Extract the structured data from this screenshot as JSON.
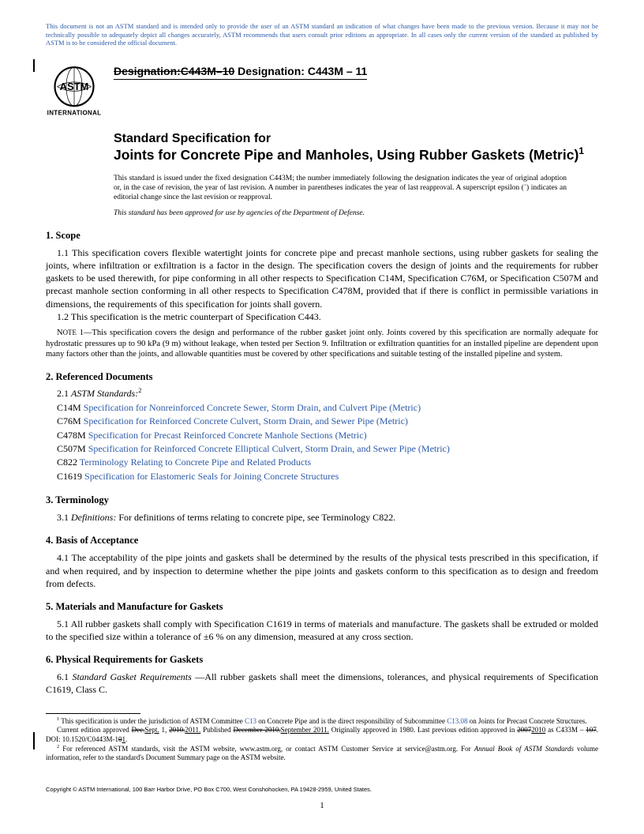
{
  "disclaimer": "This document is not an ASTM standard and is intended only to provide the user of an ASTM standard an indication of what changes have been made to the previous version. Because it may not be technically possible to adequately depict all changes accurately, ASTM recommends that users consult prior editions as appropriate. In all cases only the current version of the standard as published by ASTM is to be considered the official document.",
  "logo_text_top": "ASTM",
  "logo_text_bottom": "INTERNATIONAL",
  "designation_old_label": "Designation:",
  "designation_old_code": "C443M–10",
  "designation_new_label": " Designation: ",
  "designation_new_code": "C443M – 11",
  "title_lead": "Standard Specification for",
  "title_main": "Joints for Concrete Pipe and Manholes, Using Rubber Gaskets (Metric)",
  "title_sup": "1",
  "issuance": "This standard is issued under the fixed designation C443M; the number immediately following the designation indicates the year of original adoption or, in the case of revision, the year of last revision. A number in parentheses indicates the year of last reapproval. A superscript epsilon (´) indicates an editorial change since the last revision or reapproval.",
  "dod_note": "This standard has been approved for use by agencies of the Department of Defense.",
  "s1_head": "1.  Scope",
  "s1_1": "1.1  This specification covers flexible watertight joints for concrete pipe and precast manhole sections, using rubber gaskets for sealing the joints, where infiltration or exfiltration is a factor in the design. The specification covers the design of joints and the requirements for rubber gaskets to be used therewith, for pipe conforming in all other respects to Specification C14M, Specification C76M, or Specification C507M and precast manhole section conforming in all other respects to Specification C478M, provided that if there is conflict in permissible variations in dimensions, the requirements of this specification for joints shall govern.",
  "s1_2": "1.2  This specification is the metric counterpart of Specification C443.",
  "note1_label": "Note 1—",
  "note1": "This specification covers the design and performance of the rubber gasket joint only. Joints covered by this specification are normally adequate for hydrostatic pressures up to 90 kPa (9 m) without leakage, when tested per Section 9. Infiltration or exfiltration quantities for an installed pipeline are dependent upon many factors other than the joints, and allowable quantities must be covered by other specifications and suitable testing of the installed pipeline and system.",
  "s2_head": "2.  Referenced Documents",
  "s2_1_label": "2.1 ",
  "s2_1_italic": "ASTM Standards:",
  "s2_1_sup": "2",
  "refs": [
    {
      "code": "C14M",
      "title": "Specification for Nonreinforced Concrete Sewer, Storm Drain, and Culvert Pipe (Metric)"
    },
    {
      "code": "C76M",
      "title": "Specification for Reinforced Concrete Culvert, Storm Drain, and Sewer Pipe (Metric)"
    },
    {
      "code": "C478M",
      "title": "Specification for Precast Reinforced Concrete Manhole Sections (Metric)"
    },
    {
      "code": "C507M",
      "title": "Specification for Reinforced Concrete Elliptical Culvert, Storm Drain, and Sewer Pipe (Metric)"
    },
    {
      "code": "C822",
      "title": "Terminology Relating to Concrete Pipe and Related Products"
    },
    {
      "code": "C1619",
      "title": "Specification for Elastomeric Seals for Joining Concrete Structures"
    }
  ],
  "s3_head": "3.  Terminology",
  "s3_1_a": "3.1 ",
  "s3_1_b": "Definitions:",
  "s3_1_c": " For definitions of terms relating to concrete pipe, see Terminology C822.",
  "s4_head": "4.  Basis of Acceptance",
  "s4_1": "4.1  The acceptability of the pipe joints and gaskets shall be determined by the results of the physical tests prescribed in this specification, if and when required, and by inspection to determine whether the pipe joints and gaskets conform to this specification as to design and freedom from defects.",
  "s5_head": "5.  Materials and Manufacture for Gaskets",
  "s5_1": "5.1  All rubber gaskets shall comply with Specification C1619 in terms of materials and manufacture. The gaskets shall be extruded or molded to the specified size within a tolerance of ±6 % on any dimension, measured at any cross section.",
  "s6_head": "6.  Physical Requirements for Gaskets",
  "s6_1_a": "6.1 ",
  "s6_1_b": "Standard Gasket Requirements ",
  "s6_1_c": "—All rubber gaskets shall meet the dimensions, tolerances, and physical requirements of Specification C1619, Class C.",
  "fn1_a": " This specification is under the jurisdiction of ASTM Committee ",
  "fn1_link1": "C13",
  "fn1_b": " on Concrete Pipe and is the direct responsibility of Subcommittee ",
  "fn1_link2": "C13.08",
  "fn1_c": " on Joints for Precast Concrete Structures.",
  "fn1_line2_a": "Current edition approved ",
  "fn1_strike1": "Dec.",
  "fn1_und1": "Sept.",
  "fn1_mid1": " 1, ",
  "fn1_strike2": "2010.",
  "fn1_und2": "2011.",
  "fn1_mid2": " Published ",
  "fn1_strike3": "December 2010.",
  "fn1_und3": "September 2011.",
  "fn1_mid3": " Originally approved in 1980. Last previous edition approved in ",
  "fn1_strike4": "2007",
  "fn1_und4": "2010",
  "fn1_line3_a": " as C433M – ",
  "fn1_strike5": "107",
  "fn1_mid4": ". DOI: 10.1520/C0443M-1",
  "fn1_strike6": "0",
  "fn1_und5": "1",
  "fn1_end": ".",
  "fn2": " For referenced ASTM standards, visit the ASTM website, www.astm.org, or contact ASTM Customer Service at service@astm.org. For Annual Book of ASTM Standards volume information, refer to the standard's Document Summary page on the ASTM website.",
  "fn2_italic": "Annual Book of ASTM Standards",
  "copyright": "Copyright © ASTM International, 100 Barr Harbor Drive, PO Box C700, West Conshohocken, PA 19428-2959, United States.",
  "page_number": "1"
}
